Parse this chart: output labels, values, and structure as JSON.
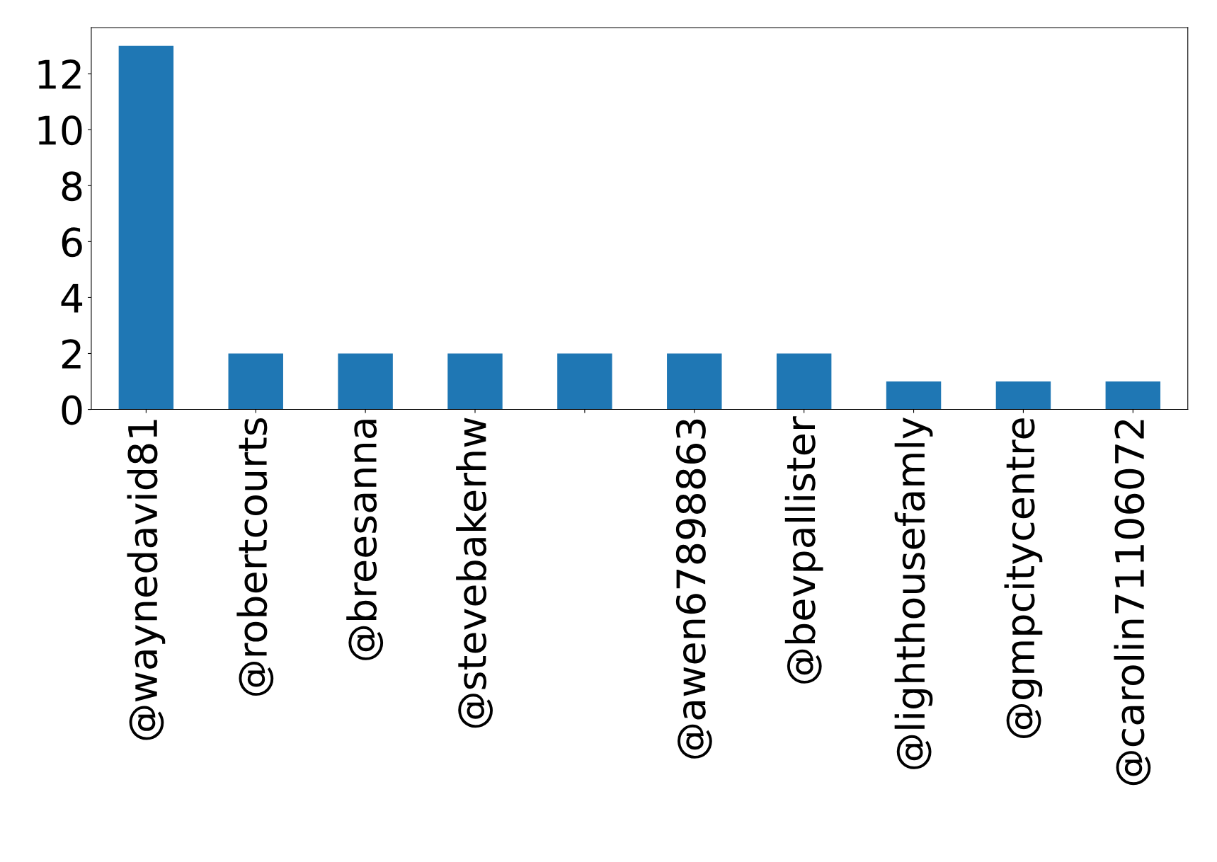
{
  "chart_data": {
    "type": "bar",
    "categories": [
      "@waynedavid81",
      "@robertcourts",
      "@breesanna",
      "@stevebakerhw",
      null,
      "@awen67898863",
      "@bevpallister",
      "@lighthousefamly",
      "@gmpcitycentre",
      "@carolin71106072"
    ],
    "values": [
      13,
      2,
      2,
      2,
      2,
      2,
      2,
      1,
      1,
      1
    ],
    "color": "#1f77b4",
    "ylim": [
      0,
      13.65
    ],
    "yticks": [
      0,
      2,
      4,
      6,
      8,
      10,
      12
    ],
    "grid": false,
    "legend": false
  }
}
